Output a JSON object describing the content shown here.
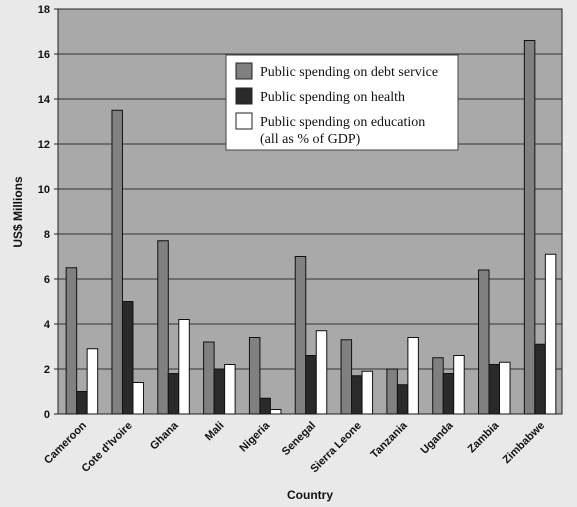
{
  "chart_data": {
    "type": "bar",
    "xlabel": "Country",
    "ylabel": "US$ Millions",
    "ylim": [
      0,
      18
    ],
    "yticks": [
      0,
      2,
      4,
      6,
      8,
      10,
      12,
      14,
      16,
      18
    ],
    "grid": true,
    "legend_position": "top-center",
    "categories": [
      "Cameroon",
      "Cote d'Ivoire",
      "Ghana",
      "Mali",
      "Nigeria",
      "Senegal",
      "Sierra Leone",
      "Tanzania",
      "Uganda",
      "Zambia",
      "Zimbabwe"
    ],
    "series": [
      {
        "name": "Public spending on debt service",
        "color": "#808080",
        "values": [
          6.5,
          13.5,
          7.7,
          3.2,
          3.4,
          7.0,
          3.3,
          2.0,
          2.5,
          6.4,
          16.6
        ]
      },
      {
        "name": "Public spending on health",
        "color": "#2a2a2a",
        "values": [
          1.0,
          5.0,
          1.8,
          2.0,
          0.7,
          2.6,
          1.7,
          1.3,
          1.8,
          2.2,
          3.1
        ]
      },
      {
        "name": "Public spending on education",
        "color": "#ffffff",
        "values": [
          2.9,
          1.4,
          4.2,
          2.2,
          0.2,
          3.7,
          1.9,
          3.4,
          2.6,
          2.3,
          7.1
        ]
      }
    ],
    "legend_note": "(all as % of GDP)"
  }
}
